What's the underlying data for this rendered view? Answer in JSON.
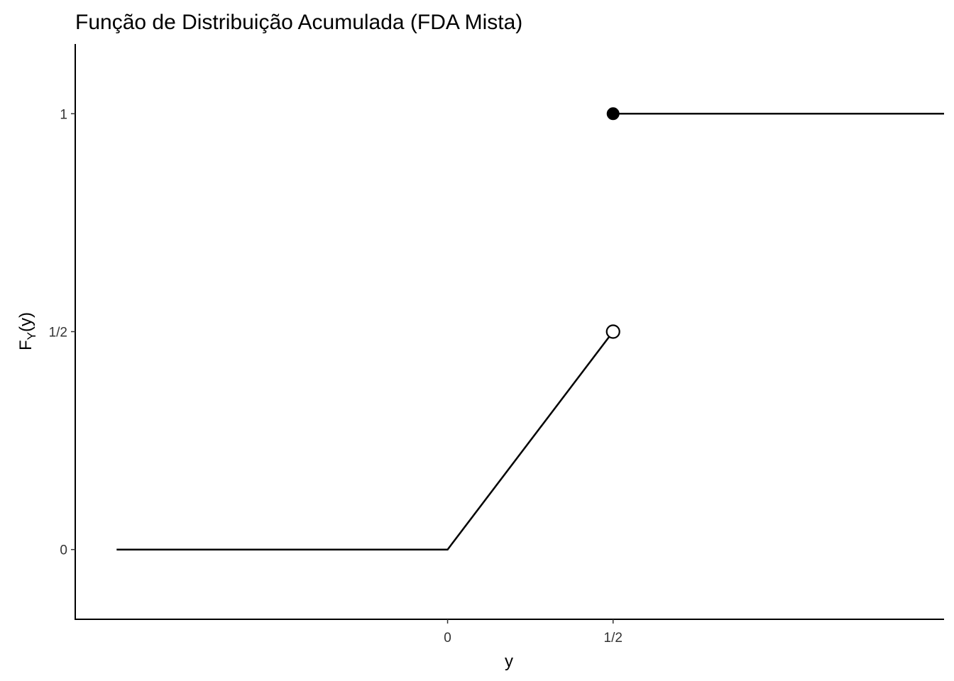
{
  "chart_data": {
    "type": "line",
    "title": "Função de Distribuição Acumulada (FDA Mista)",
    "xlabel": "y",
    "ylabel": "F",
    "ylabel_sub": "Y",
    "ylabel_suffix": "(y)",
    "xlim": [
      -1.125,
      1.5
    ],
    "ylim": [
      -0.16,
      1.16
    ],
    "x_ticks": [
      {
        "value": 0,
        "label": "0"
      },
      {
        "value": 0.5,
        "label": "1/2"
      }
    ],
    "y_ticks": [
      {
        "value": 0,
        "label": "0"
      },
      {
        "value": 0.5,
        "label": "1/2"
      },
      {
        "value": 1,
        "label": "1"
      }
    ],
    "series": [
      {
        "points": [
          [
            -1,
            0
          ],
          [
            0,
            0
          ],
          [
            0.5,
            0.5
          ]
        ]
      },
      {
        "points": [
          [
            0.5,
            1
          ],
          [
            1.5,
            1
          ]
        ]
      }
    ],
    "markers": [
      {
        "x": 0.5,
        "y": 0.5,
        "fill": "open"
      },
      {
        "x": 0.5,
        "y": 1,
        "fill": "filled"
      }
    ],
    "grid": false,
    "line_color": "#000000"
  }
}
